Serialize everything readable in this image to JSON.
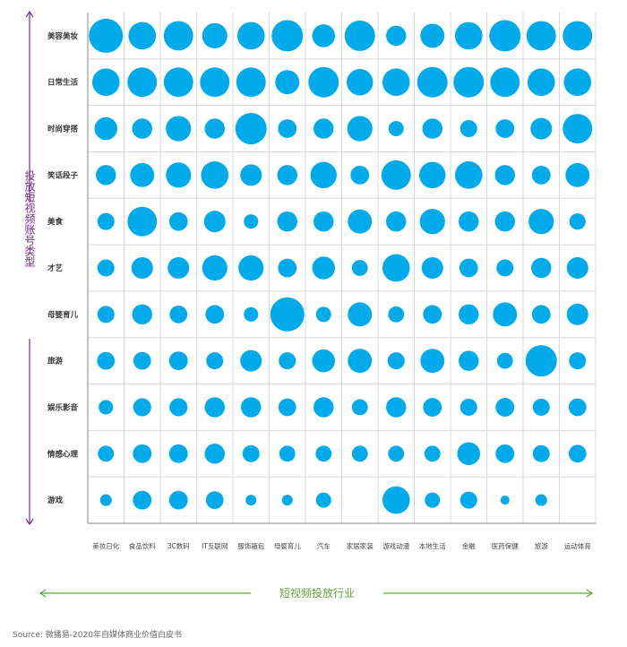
{
  "chart_data": {
    "type": "scatter",
    "kind": "bubble-matrix",
    "ylabel": "投放短视频账号类型",
    "xlabel": "短视频投放行业",
    "source": "Source: 微播易-2020年自媒体商业价值白皮书",
    "categories_x": [
      "美妆日化",
      "食品饮料",
      "3C数码",
      "IT互联网",
      "服饰箱包",
      "母婴育儿",
      "汽车",
      "家居家装",
      "游戏动漫",
      "本地生活",
      "金融",
      "医药保健",
      "旅游",
      "运动体育"
    ],
    "categories_y": [
      "美容美妆",
      "日常生活",
      "时尚穿搭",
      "笑话段子",
      "美食",
      "才艺",
      "母婴育儿",
      "旅游",
      "娱乐影音",
      "情感心理",
      "游戏"
    ],
    "size_scale": "relative (0 = no bubble, 10 = largest)",
    "values": [
      [
        10,
        6.5,
        7.5,
        5.5,
        6.5,
        8.5,
        4.5,
        8,
        3.5,
        5,
        6.5,
        8.5,
        7.5,
        7.5
      ],
      [
        6.5,
        7.5,
        7.5,
        7.5,
        7.5,
        5,
        8,
        6,
        6.5,
        8,
        8,
        7.5,
        6.5,
        6.5
      ],
      [
        4.5,
        3.5,
        5.5,
        3.5,
        8.5,
        3,
        3.5,
        5.5,
        2,
        3.5,
        2.5,
        3,
        4,
        7.5
      ],
      [
        3.5,
        5,
        5.5,
        6.5,
        4,
        3.5,
        6,
        3,
        7.5,
        6,
        6.5,
        3.5,
        3,
        5
      ],
      [
        2.5,
        7.5,
        3,
        4,
        1.8,
        3.5,
        3.5,
        5,
        3.5,
        5.5,
        3.5,
        3.5,
        5.5,
        2.3
      ],
      [
        2.5,
        4,
        4,
        5.5,
        5.5,
        3,
        4.5,
        2.2,
        6.5,
        4,
        3,
        2.5,
        3.5,
        4
      ],
      [
        2.5,
        3.5,
        2.7,
        3,
        1.8,
        10,
        2,
        5,
        2.2,
        3,
        3.5,
        5,
        3,
        4
      ],
      [
        2.7,
        2.7,
        3,
        2.5,
        4,
        2.5,
        4.5,
        5,
        2.5,
        5,
        3.5,
        2.2,
        8.5,
        2.5
      ],
      [
        1.8,
        2.8,
        2.8,
        3.5,
        3.5,
        2.7,
        3.5,
        2.2,
        3.5,
        3,
        2.5,
        3,
        2.5,
        2.7
      ],
      [
        2.2,
        3,
        3,
        3.5,
        2.5,
        2.2,
        2.2,
        2.2,
        2.2,
        2.2,
        4.5,
        3,
        2.5,
        2.7
      ],
      [
        1.2,
        3,
        3,
        2.7,
        1,
        1,
        2,
        0,
        6.5,
        2,
        2.5,
        0.7,
        1.2,
        0
      ]
    ]
  },
  "colors": {
    "bubble": "#00aaeb",
    "grid": "#d8d8d8",
    "axis": "#9b9b9b",
    "y_arrow": "#7a2a8e",
    "x_arrow": "#5ba53a"
  }
}
